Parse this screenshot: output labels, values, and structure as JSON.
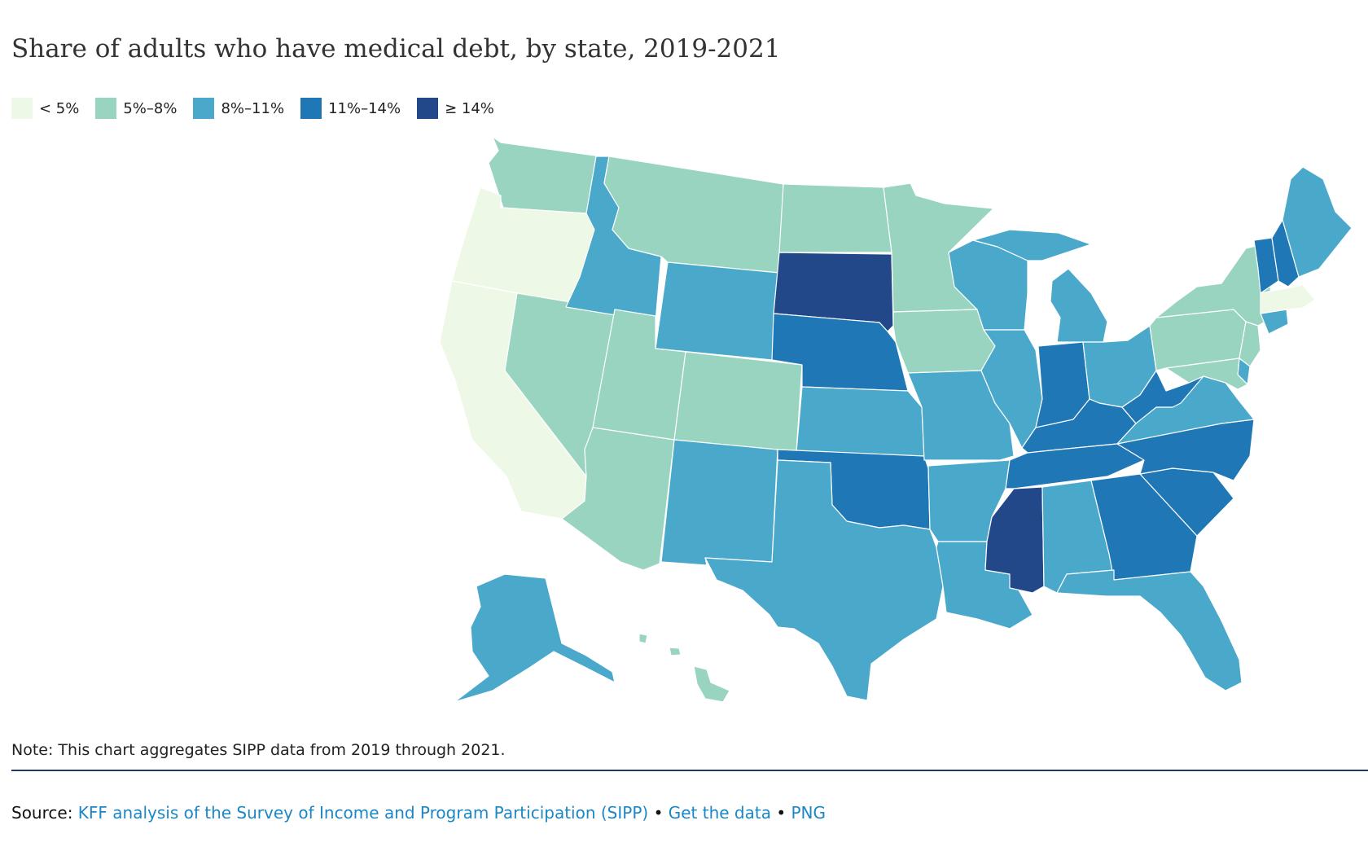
{
  "title": "Share of adults who have medical debt, by state, 2019-2021",
  "legend": [
    {
      "label": "< 5%",
      "color": "#eef8e6"
    },
    {
      "label": "5%–8%",
      "color": "#98d4bf"
    },
    {
      "label": "8%–11%",
      "color": "#4aa8cb"
    },
    {
      "label": "11%–14%",
      "color": "#1f77b6"
    },
    {
      "label": "≥ 14%",
      "color": "#23488a"
    }
  ],
  "state_bins": {
    "WA": 1,
    "OR": 0,
    "CA": 0,
    "ID": 2,
    "NV": 1,
    "MT": 1,
    "WY": 2,
    "UT": 1,
    "AZ": 1,
    "CO": 1,
    "NM": 2,
    "ND": 1,
    "SD": 4,
    "NE": 3,
    "KS": 2,
    "OK": 3,
    "TX": 2,
    "MN": 1,
    "IA": 1,
    "MO": 2,
    "AR": 2,
    "LA": 2,
    "WI": 2,
    "IL": 2,
    "MI": 2,
    "IN": 3,
    "OH": 2,
    "KY": 3,
    "TN": 3,
    "MS": 4,
    "AL": 2,
    "GA": 3,
    "FL": 2,
    "SC": 3,
    "NC": 3,
    "VA": 2,
    "WV": 3,
    "PA": 1,
    "NY": 1,
    "ME": 2,
    "VT": 3,
    "NH": 3,
    "MA": 0,
    "CT": 2,
    "NJ": 1,
    "DE": 2,
    "MD": 1,
    "AK": 2,
    "HI": 1
  },
  "note": "Note: This chart aggregates SIPP data from 2019 through 2021.",
  "source": {
    "prefix": "Source:",
    "link1": "KFF analysis of the Survey of Income and Program Participation (SIPP)",
    "sep1": "•",
    "link2": "Get the data",
    "sep2": "•",
    "link3": "PNG"
  }
}
